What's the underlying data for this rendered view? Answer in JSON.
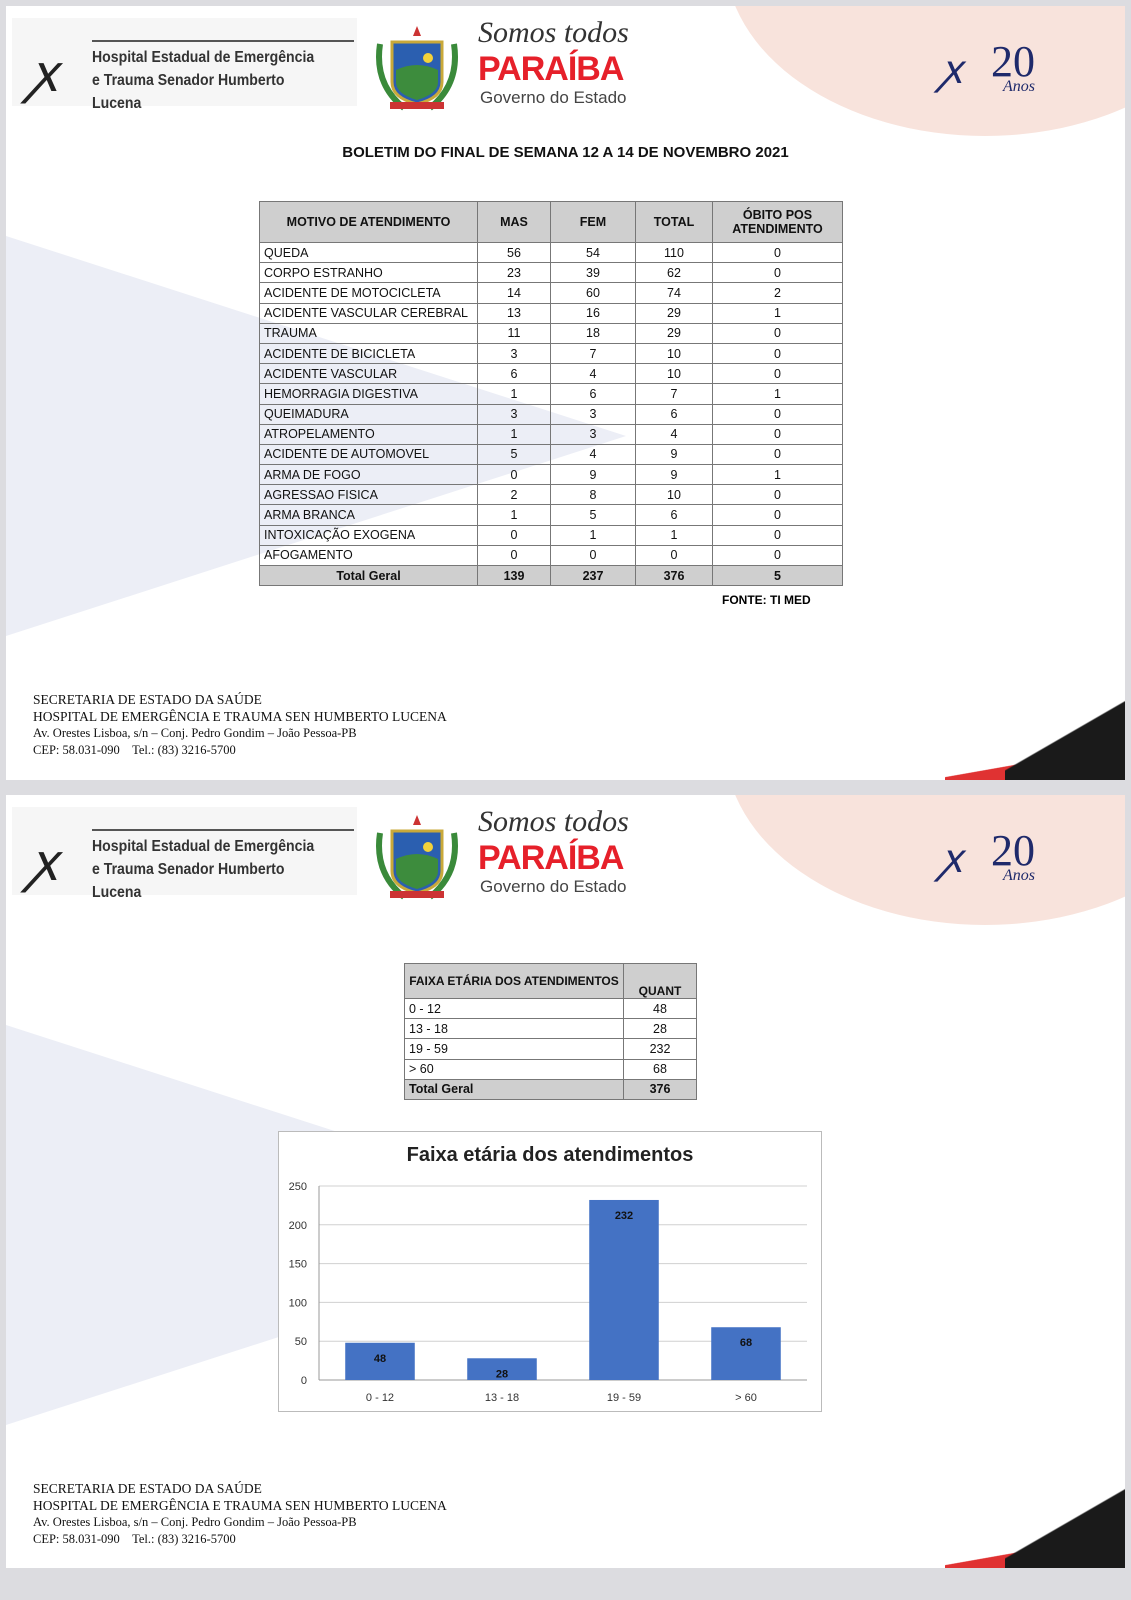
{
  "header": {
    "hospital_name_line1": "Hospital Estadual de Emergência",
    "hospital_name_line2": "e Trauma Senador Humberto Lucena",
    "slogan_top": "Somos todos",
    "slogan_state": "PARAÍBA",
    "slogan_bottom": "Governo do Estado",
    "anniversary_number": "20",
    "anniversary_word": "Anos",
    "colors": {
      "paraiba_red": "#e6202a",
      "anniversary_blue": "#1f2a6b"
    }
  },
  "page1": {
    "title": "BOLETIM DO FINAL DE SEMANA 12 A 14 DE NOVEMBRO 2021",
    "table": {
      "headers": [
        "MOTIVO DE ATENDIMENTO",
        "MAS",
        "FEM",
        "TOTAL",
        "ÓBITO POS ATENDIMENTO"
      ],
      "rows": [
        [
          "QUEDA",
          "56",
          "54",
          "110",
          "0"
        ],
        [
          "CORPO ESTRANHO",
          "23",
          "39",
          "62",
          "0"
        ],
        [
          "ACIDENTE DE MOTOCICLETA",
          "14",
          "60",
          "74",
          "2"
        ],
        [
          "ACIDENTE VASCULAR CEREBRAL",
          "13",
          "16",
          "29",
          "1"
        ],
        [
          "TRAUMA",
          "11",
          "18",
          "29",
          "0"
        ],
        [
          "ACIDENTE DE BICICLETA",
          "3",
          "7",
          "10",
          "0"
        ],
        [
          "ACIDENTE VASCULAR",
          "6",
          "4",
          "10",
          "0"
        ],
        [
          "HEMORRAGIA DIGESTIVA",
          "1",
          "6",
          "7",
          "1"
        ],
        [
          "QUEIMADURA",
          "3",
          "3",
          "6",
          "0"
        ],
        [
          "ATROPELAMENTO",
          "1",
          "3",
          "4",
          "0"
        ],
        [
          "ACIDENTE DE AUTOMOVEL",
          "5",
          "4",
          "9",
          "0"
        ],
        [
          "ARMA DE FOGO",
          "0",
          "9",
          "9",
          "1"
        ],
        [
          "AGRESSAO FISICA",
          "2",
          "8",
          "10",
          "0"
        ],
        [
          "ARMA BRANCA",
          "1",
          "5",
          "6",
          "0"
        ],
        [
          "INTOXICAÇÃO EXOGENA",
          "0",
          "1",
          "1",
          "0"
        ],
        [
          "AFOGAMENTO",
          "0",
          "0",
          "0",
          "0"
        ]
      ],
      "total": [
        "Total Geral",
        "139",
        "237",
        "376",
        "5"
      ]
    },
    "source": "FONTE: TI MED"
  },
  "footer": {
    "line1": "SECRETARIA DE ESTADO DA SAÚDE",
    "line2": "HOSPITAL DE EMERGÊNCIA E TRAUMA SEN HUMBERTO LUCENA",
    "line3": "Av. Orestes Lisboa, s/n – Conj. Pedro Gondim – João Pessoa-PB",
    "line4": "CEP: 58.031-090    Tel.: (83) 3216-5700"
  },
  "page2": {
    "table": {
      "headers": [
        "FAIXA ETÁRIA DOS ATENDIMENTOS",
        "QUANT"
      ],
      "rows": [
        [
          "0 - 12",
          "48"
        ],
        [
          "13 - 18",
          "28"
        ],
        [
          "19 - 59",
          "232"
        ],
        [
          "> 60",
          "68"
        ]
      ],
      "total": [
        "Total Geral",
        "376"
      ]
    }
  },
  "chart_data": {
    "type": "bar",
    "title": "Faixa etária dos atendimentos",
    "categories": [
      "0 - 12",
      "13 - 18",
      "19 - 59",
      "> 60"
    ],
    "values": [
      48,
      28,
      232,
      68
    ],
    "yticks": [
      "0",
      "50",
      "100",
      "150",
      "200",
      "250"
    ],
    "ylim": [
      0,
      250
    ],
    "grid": true,
    "legend": "none",
    "bar_color": "#4472c4"
  }
}
